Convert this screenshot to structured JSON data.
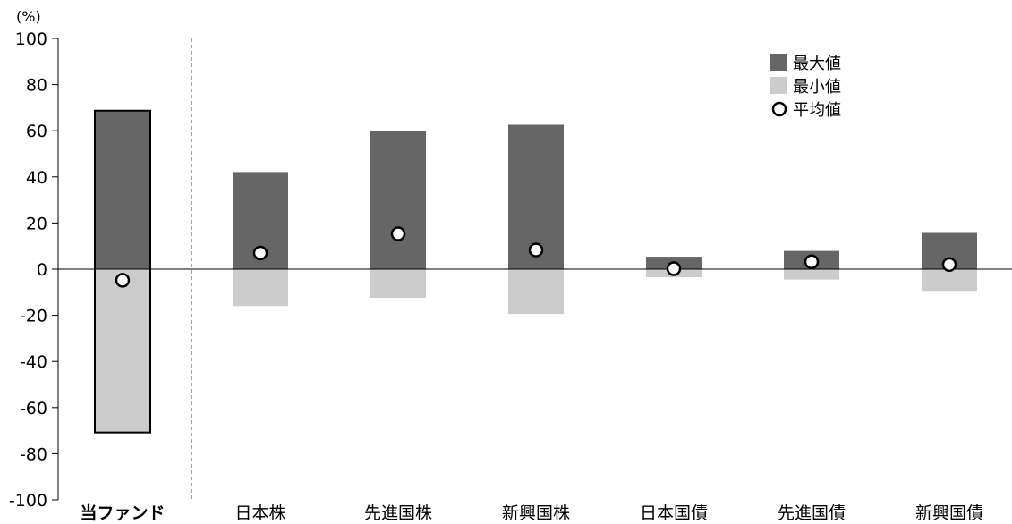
{
  "chart_data": {
    "type": "bar",
    "y_unit": "(%)",
    "ylim": [
      -100,
      100
    ],
    "y_ticks": [
      100,
      80,
      60,
      40,
      20,
      0,
      -20,
      -40,
      -60,
      -80,
      -100
    ],
    "grid": false,
    "legend_position": "top-right",
    "categories": [
      "当ファンド",
      "日本株",
      "先進国株",
      "新興国株",
      "日本国債",
      "先進国債",
      "新興国債"
    ],
    "series": [
      {
        "name": "最大値",
        "values": [
          68.7,
          42.1,
          59.8,
          62.6,
          5.4,
          7.9,
          15.7
        ]
      },
      {
        "name": "最小値",
        "values": [
          -70.8,
          -16.0,
          -12.4,
          -19.4,
          -3.5,
          -4.5,
          -9.4
        ]
      },
      {
        "name": "平均値",
        "values": [
          -4.8,
          7.0,
          15.3,
          8.3,
          0.2,
          3.2,
          2.0
        ]
      }
    ],
    "colors": {
      "max": "#666666",
      "min": "#cccccc",
      "avg_fill": "#ffffff",
      "avg_stroke": "#000000",
      "highlight_border": "#000000"
    }
  }
}
